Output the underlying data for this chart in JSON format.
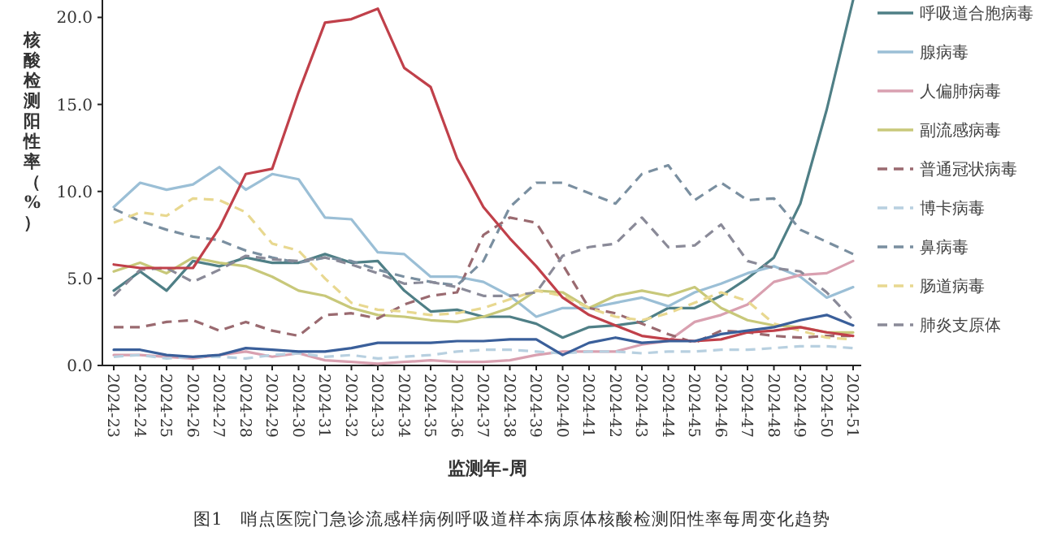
{
  "chart_data": {
    "type": "line",
    "xlabel": "监测年-周",
    "ylabel": "核酸检测阳性率（%）",
    "annotations": [
      "图1　哨点医院门急诊流感样病例呼吸道样本病原体核酸检测阳性率每周变化趋势"
    ],
    "categories": [
      "2024-23",
      "2024-24",
      "2024-25",
      "2024-26",
      "2024-27",
      "2024-28",
      "2024-29",
      "2024-30",
      "2024-31",
      "2024-32",
      "2024-33",
      "2024-34",
      "2024-35",
      "2024-36",
      "2024-37",
      "2024-38",
      "2024-39",
      "2024-40",
      "2024-41",
      "2024-42",
      "2024-43",
      "2024-44",
      "2024-45",
      "2024-46",
      "2024-47",
      "2024-48",
      "2024-49",
      "2024-50",
      "2024-51"
    ],
    "ylim": [
      0,
      21
    ],
    "yticks": [
      {
        "value": 0,
        "label": "0.0"
      },
      {
        "value": 5,
        "label": "5.0"
      },
      {
        "value": 10,
        "label": "10.0"
      },
      {
        "value": 15,
        "label": "15.0"
      },
      {
        "value": 20,
        "label": "20.0"
      }
    ],
    "grid": false,
    "legend": "right",
    "marker": "none",
    "series": [
      {
        "name": "呼吸道合胞病毒",
        "color": "#4f7f86",
        "line_style": "solid",
        "values": [
          4.3,
          5.4,
          4.3,
          6.0,
          5.7,
          6.2,
          5.9,
          5.9,
          6.4,
          5.9,
          6.0,
          4.3,
          3.1,
          3.2,
          2.8,
          2.8,
          2.4,
          1.6,
          2.2,
          2.3,
          2.5,
          3.3,
          3.3,
          4.0,
          5.0,
          6.2,
          9.3,
          14.7,
          21
        ]
      },
      {
        "name": "腺病毒",
        "color": "#9bbfd6",
        "line_style": "solid",
        "values": [
          9.1,
          10.5,
          10.1,
          10.4,
          11.4,
          10.1,
          11.0,
          10.7,
          8.5,
          8.4,
          6.5,
          6.4,
          5.1,
          5.1,
          4.8,
          4.0,
          2.8,
          3.3,
          3.3,
          3.6,
          3.9,
          3.4,
          4.2,
          4.7,
          5.3,
          5.7,
          5.1,
          3.9,
          4.5
        ]
      },
      {
        "name": "人偏肺病毒",
        "color": "#d9a0b0",
        "line_style": "solid",
        "values": [
          0.6,
          0.6,
          0.5,
          0.4,
          0.6,
          0.8,
          0.5,
          0.7,
          0.3,
          0.2,
          0.1,
          0.2,
          0.3,
          0.2,
          0.2,
          0.3,
          0.6,
          0.8,
          0.8,
          0.8,
          1.2,
          1.4,
          2.5,
          2.9,
          3.5,
          4.8,
          5.2,
          5.3,
          6.0
        ]
      },
      {
        "name": "副流感病毒",
        "color": "#c8c87a",
        "line_style": "solid",
        "values": [
          5.4,
          5.9,
          5.3,
          6.2,
          5.9,
          5.7,
          5.1,
          4.3,
          4.0,
          3.3,
          2.9,
          2.8,
          2.6,
          2.5,
          2.8,
          3.3,
          4.3,
          4.2,
          3.3,
          4.0,
          4.3,
          4.0,
          4.5,
          3.3,
          2.6,
          2.3,
          2.2,
          1.9,
          1.9
        ]
      },
      {
        "name": "普通冠状病毒",
        "color": "#9a6a70",
        "line_style": "dashed",
        "values": [
          2.2,
          2.2,
          2.5,
          2.6,
          2.0,
          2.5,
          2.0,
          1.7,
          2.9,
          3.0,
          2.7,
          3.5,
          4.0,
          4.2,
          7.5,
          8.5,
          8.2,
          5.8,
          3.3,
          3.0,
          2.4,
          1.8,
          1.3,
          2.0,
          1.9,
          1.7,
          1.6,
          1.7,
          1.7
        ]
      },
      {
        "name": "博卡病毒",
        "color": "#b8d0e0",
        "line_style": "dashed",
        "values": [
          0.5,
          0.6,
          0.4,
          0.5,
          0.5,
          0.4,
          0.6,
          0.7,
          0.5,
          0.6,
          0.4,
          0.5,
          0.6,
          0.8,
          0.9,
          0.9,
          0.8,
          0.7,
          0.8,
          0.8,
          0.7,
          0.8,
          0.8,
          0.9,
          0.9,
          1.0,
          1.1,
          1.1,
          1.0
        ]
      },
      {
        "name": "鼻病毒",
        "color": "#7a8fa0",
        "line_style": "dashed",
        "values": [
          9.0,
          8.3,
          7.8,
          7.4,
          7.2,
          6.6,
          6.2,
          5.9,
          6.2,
          6.0,
          5.5,
          5.1,
          4.8,
          4.6,
          6.0,
          9.1,
          10.5,
          10.5,
          9.9,
          9.3,
          11.0,
          11.5,
          9.5,
          10.5,
          9.5,
          9.6,
          7.8,
          7.1,
          6.4
        ]
      },
      {
        "name": "肠道病毒",
        "color": "#e8d890",
        "line_style": "dashed",
        "values": [
          8.2,
          8.8,
          8.6,
          9.6,
          9.5,
          8.8,
          7.0,
          6.6,
          5.0,
          3.6,
          3.2,
          3.1,
          2.9,
          3.0,
          3.3,
          3.8,
          4.3,
          4.0,
          3.3,
          2.8,
          2.6,
          3.0,
          3.6,
          4.2,
          3.7,
          2.4,
          2.0,
          1.6,
          1.5
        ]
      },
      {
        "name": "肺炎支原体",
        "color": "#8a8a98",
        "line_style": "dashed",
        "values": [
          4.0,
          5.5,
          5.6,
          4.8,
          5.5,
          6.3,
          6.1,
          6.0,
          6.2,
          5.8,
          5.3,
          4.7,
          4.8,
          4.5,
          4.0,
          4.0,
          4.2,
          6.3,
          6.8,
          7.0,
          8.5,
          6.8,
          6.9,
          8.1,
          6.0,
          5.6,
          5.4,
          4.2,
          2.6
        ]
      },
      {
        "color": "#c0404a",
        "line_style": "solid",
        "values": [
          5.8,
          5.6,
          5.6,
          5.6,
          7.9,
          11.0,
          11.3,
          15.7,
          19.7,
          19.9,
          20.5,
          17.1,
          16.0,
          11.9,
          9.1,
          7.3,
          5.7,
          3.9,
          2.9,
          2.3,
          1.7,
          1.5,
          1.4,
          1.5,
          1.9,
          2.0,
          2.2,
          1.9,
          1.7
        ]
      },
      {
        "color": "#3a5f9a",
        "line_style": "solid",
        "values": [
          0.9,
          0.9,
          0.6,
          0.5,
          0.6,
          1.0,
          0.9,
          0.8,
          0.8,
          1.0,
          1.3,
          1.3,
          1.3,
          1.4,
          1.4,
          1.5,
          1.5,
          0.6,
          1.3,
          1.6,
          1.3,
          1.4,
          1.4,
          1.8,
          2.0,
          2.2,
          2.6,
          2.9,
          2.3
        ]
      }
    ]
  }
}
